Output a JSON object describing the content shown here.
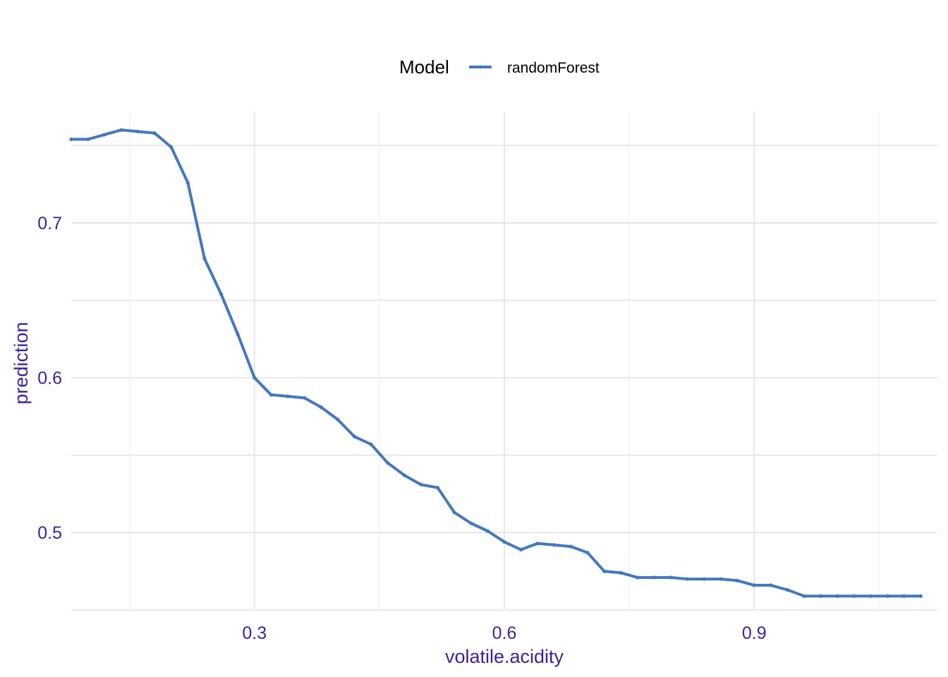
{
  "chart_data": {
    "type": "line",
    "title": "",
    "xlabel": "volatile.acidity",
    "ylabel": "prediction",
    "xlim": [
      0.08,
      1.12
    ],
    "ylim": [
      0.45,
      0.772
    ],
    "xticks": [
      0.3,
      0.6,
      0.9
    ],
    "xtick_labels": [
      "0.3",
      "0.6",
      "0.9"
    ],
    "yticks": [
      0.5,
      0.6,
      0.7
    ],
    "ytick_labels": [
      "0.5",
      "0.6",
      "0.7"
    ],
    "x_minor_gridlines": [
      0.15,
      0.45,
      0.75,
      1.05
    ],
    "y_minor_gridlines": [
      0.45,
      0.55,
      0.65,
      0.75
    ],
    "grid": true,
    "legend": {
      "title": "Model",
      "position": "top"
    },
    "series": [
      {
        "name": "randomForest",
        "color": "#4378bf",
        "x": [
          0.08,
          0.1,
          0.12,
          0.14,
          0.16,
          0.18,
          0.2,
          0.22,
          0.24,
          0.26,
          0.28,
          0.3,
          0.32,
          0.34,
          0.36,
          0.38,
          0.4,
          0.42,
          0.44,
          0.46,
          0.48,
          0.5,
          0.52,
          0.54,
          0.56,
          0.58,
          0.6,
          0.62,
          0.64,
          0.66,
          0.68,
          0.7,
          0.72,
          0.74,
          0.76,
          0.78,
          0.8,
          0.82,
          0.84,
          0.86,
          0.88,
          0.9,
          0.92,
          0.94,
          0.96,
          0.98,
          1.0,
          1.02,
          1.04,
          1.06,
          1.08,
          1.1
        ],
        "values": [
          0.754,
          0.754,
          0.757,
          0.76,
          0.759,
          0.758,
          0.749,
          0.726,
          0.677,
          0.654,
          0.628,
          0.6,
          0.589,
          0.588,
          0.587,
          0.581,
          0.573,
          0.562,
          0.557,
          0.545,
          0.537,
          0.531,
          0.529,
          0.513,
          0.506,
          0.501,
          0.494,
          0.489,
          0.493,
          0.492,
          0.491,
          0.487,
          0.475,
          0.474,
          0.471,
          0.471,
          0.471,
          0.47,
          0.47,
          0.47,
          0.469,
          0.466,
          0.466,
          0.463,
          0.459,
          0.459,
          0.459,
          0.459,
          0.459,
          0.459,
          0.459,
          0.459
        ]
      }
    ]
  },
  "colors": {
    "axis_text": "#3f1fa0",
    "grid_major": "#e3e3e3",
    "grid_minor": "#f0f0f0",
    "series": "#4378bf"
  }
}
